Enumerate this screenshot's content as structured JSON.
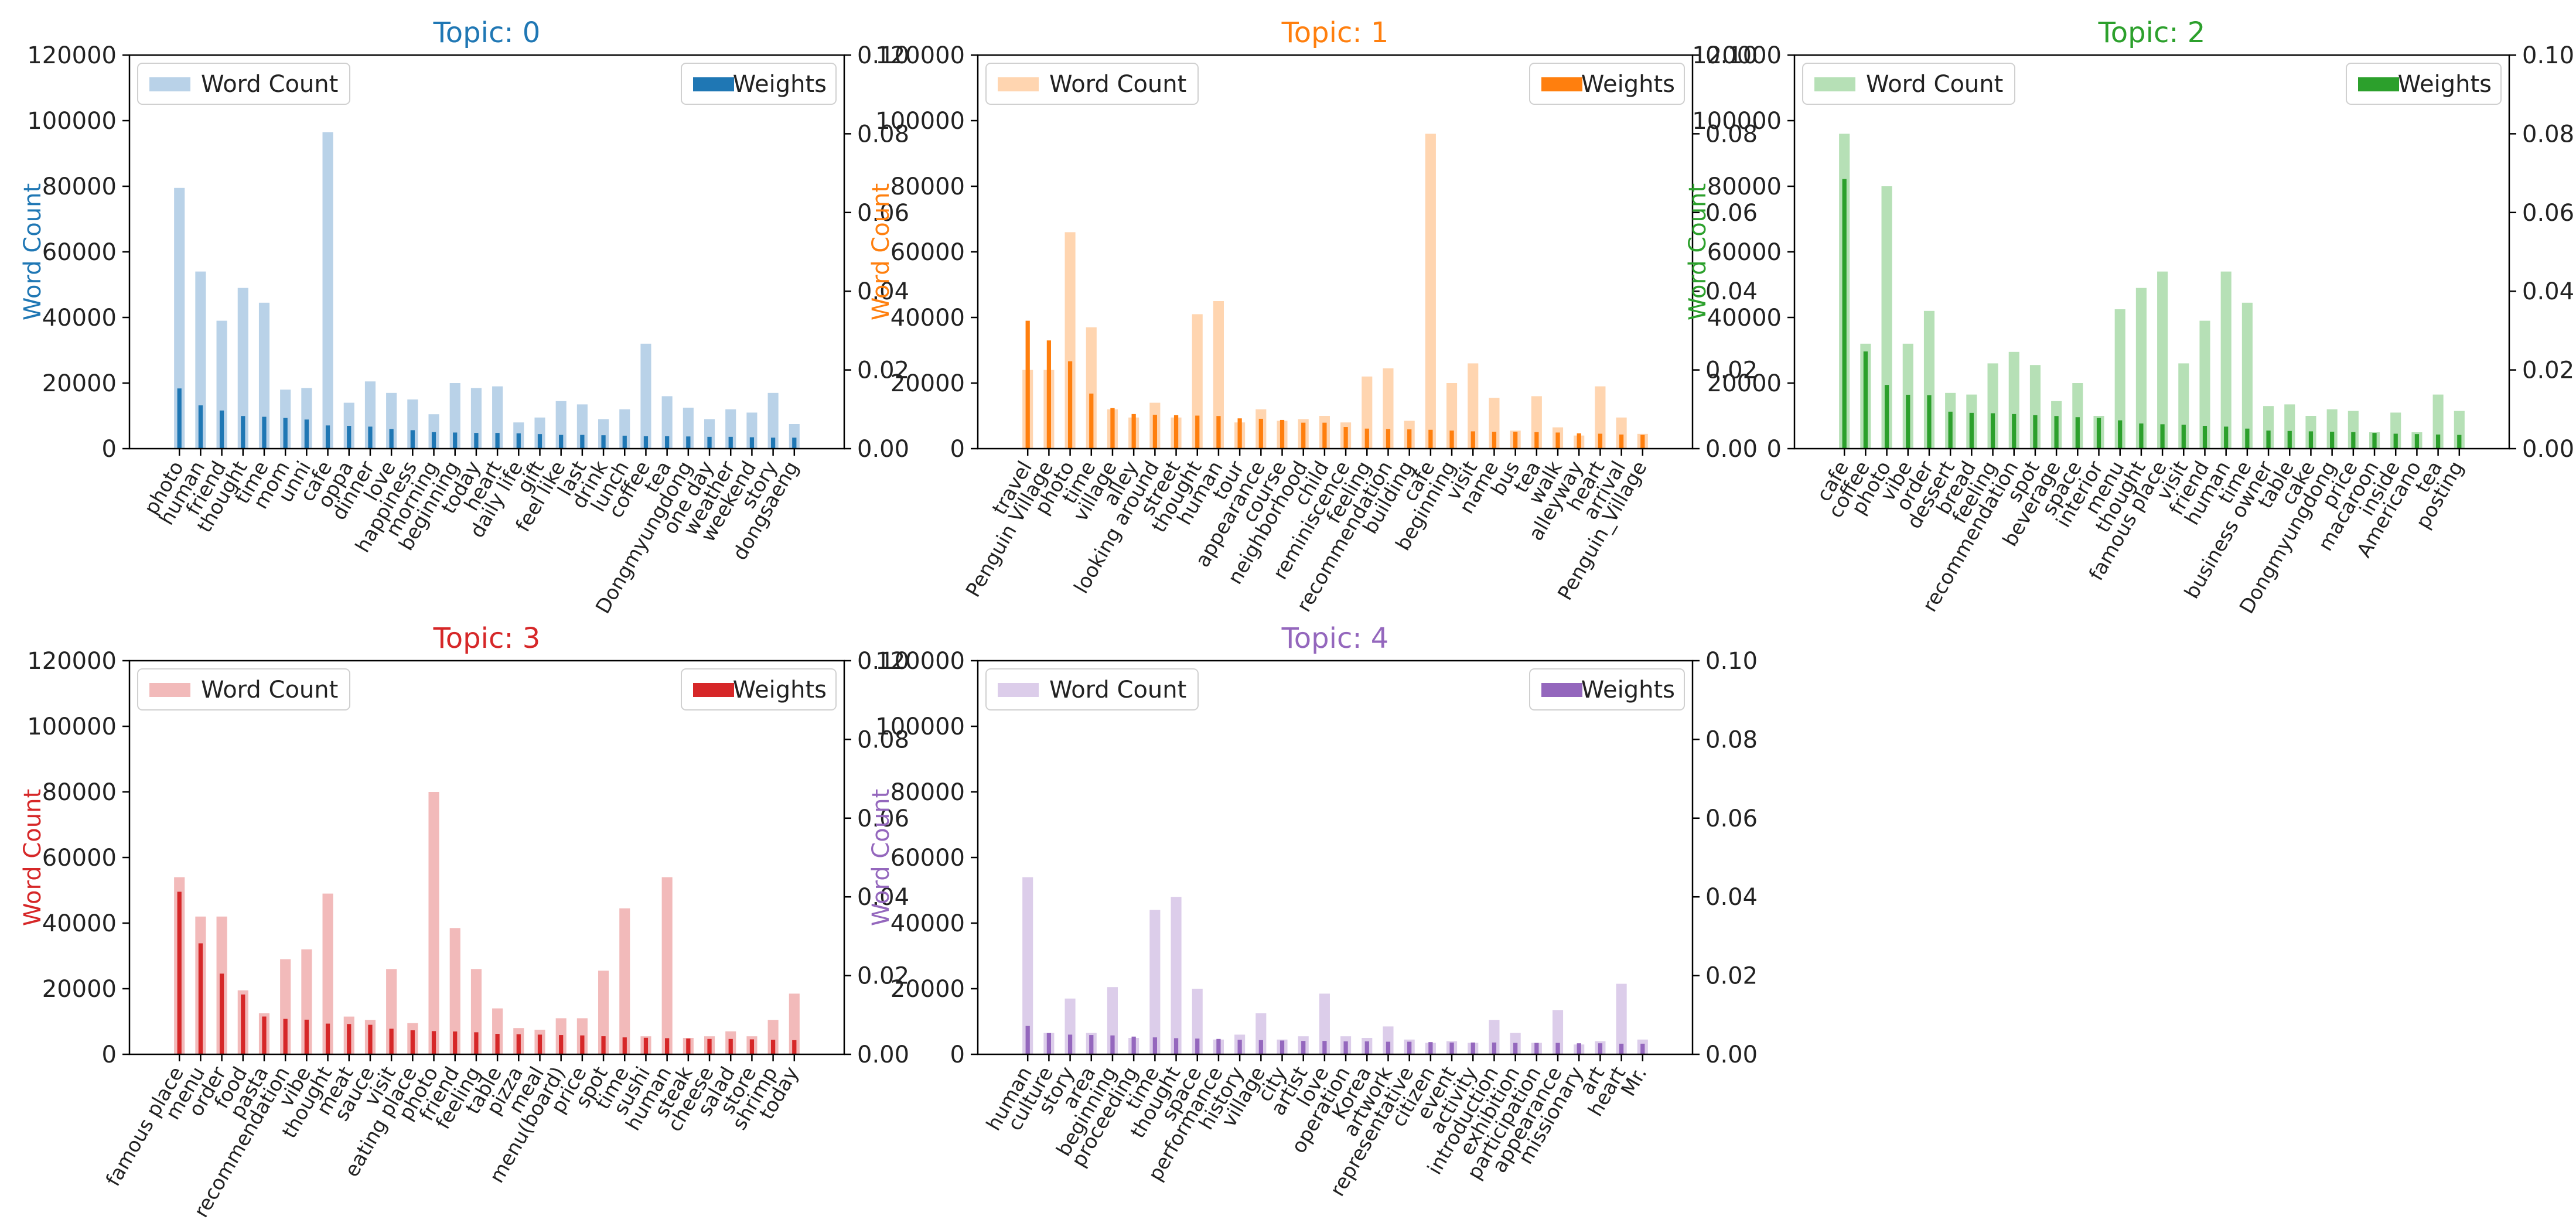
{
  "figure": {
    "word_count_label": "Word Count",
    "weights_label": "Weights"
  },
  "chart_data": [
    {
      "type": "bar",
      "title": "Topic: 0",
      "color": "#1f77b4",
      "light_color": "#b9d2e8",
      "ylabel": "Word Count",
      "ylim": [
        0,
        120000
      ],
      "y2lim": [
        0,
        0.1
      ],
      "yticks": [
        "0",
        "20000",
        "40000",
        "60000",
        "80000",
        "100000",
        "120000"
      ],
      "y2ticks": [
        "0.00",
        "0.02",
        "0.04",
        "0.06",
        "0.08",
        "0.10"
      ],
      "categories": [
        "photo",
        "human",
        "friend",
        "thought",
        "time",
        "mom",
        "unni",
        "cafe",
        "oppa",
        "dinner",
        "love",
        "happiness",
        "morning",
        "beginning",
        "today",
        "heart",
        "daily life",
        "gift",
        "feel like",
        "last",
        "drink",
        "lunch",
        "coffee",
        "tea",
        "Dongmyungdong",
        "one day",
        "weather",
        "weekend",
        "story",
        "dongsaeng"
      ],
      "series": [
        {
          "name": "Word Count",
          "axis": "left",
          "values": [
            79500,
            54000,
            39000,
            49000,
            44500,
            18000,
            18500,
            96500,
            14000,
            20500,
            17000,
            15000,
            10500,
            20000,
            18500,
            19000,
            8000,
            9500,
            14500,
            13500,
            9000,
            12000,
            32000,
            16000,
            12500,
            9000,
            12000,
            11000,
            17000,
            7500
          ]
        },
        {
          "name": "Weights",
          "axis": "right",
          "values": [
            0.0153,
            0.011,
            0.0097,
            0.0083,
            0.0081,
            0.0078,
            0.0074,
            0.0059,
            0.0058,
            0.0056,
            0.005,
            0.0047,
            0.0042,
            0.0041,
            0.004,
            0.004,
            0.0039,
            0.0037,
            0.0035,
            0.0035,
            0.0034,
            0.0033,
            0.0032,
            0.0032,
            0.0031,
            0.003,
            0.003,
            0.0029,
            0.0028,
            0.0028
          ]
        }
      ]
    },
    {
      "type": "bar",
      "title": "Topic: 1",
      "color": "#ff7f0e",
      "light_color": "#ffd5b0",
      "ylabel": "Word Count",
      "ylim": [
        0,
        120000
      ],
      "y2lim": [
        0,
        0.1
      ],
      "yticks": [
        "0",
        "20000",
        "40000",
        "60000",
        "80000",
        "100000",
        "120000"
      ],
      "y2ticks": [
        "0.00",
        "0.02",
        "0.04",
        "0.06",
        "0.08",
        "0.10"
      ],
      "categories": [
        "travel",
        "Penguin Village",
        "photo",
        "time",
        "village",
        "alley",
        "looking around",
        "street",
        "thought",
        "human",
        "tour",
        "appearance",
        "course",
        "neighborhood",
        "child",
        "reminiscence",
        "feeling",
        "recommendation",
        "building",
        "cafe",
        "beginning",
        "visit",
        "name",
        "bus",
        "tea",
        "walk",
        "alleyway",
        "heart",
        "arrival",
        "Penguin_Village"
      ],
      "series": [
        {
          "name": "Word Count",
          "axis": "left",
          "values": [
            24000,
            24000,
            66000,
            37000,
            12000,
            9500,
            14000,
            9500,
            41000,
            45000,
            8000,
            12000,
            8500,
            9000,
            10000,
            8000,
            22000,
            24500,
            8500,
            96000,
            20000,
            26000,
            15500,
            5500,
            16000,
            6500,
            4000,
            19000,
            9500,
            4500
          ]
        },
        {
          "name": "Weights",
          "axis": "right",
          "values": [
            0.0325,
            0.0275,
            0.0222,
            0.014,
            0.0103,
            0.0088,
            0.0086,
            0.0085,
            0.0084,
            0.0083,
            0.0077,
            0.0076,
            0.0073,
            0.0066,
            0.0066,
            0.0055,
            0.0051,
            0.005,
            0.0049,
            0.0048,
            0.0046,
            0.0044,
            0.0043,
            0.0043,
            0.0042,
            0.0041,
            0.0039,
            0.0038,
            0.0036,
            0.0035
          ]
        }
      ]
    },
    {
      "type": "bar",
      "title": "Topic: 2",
      "color": "#2ca02c",
      "light_color": "#b6e0b6",
      "ylabel": "Word Count",
      "ylim": [
        0,
        120000
      ],
      "y2lim": [
        0,
        0.1
      ],
      "yticks": [
        "0",
        "20000",
        "40000",
        "60000",
        "80000",
        "100000",
        "120000"
      ],
      "y2ticks": [
        "0.00",
        "0.02",
        "0.04",
        "0.06",
        "0.08",
        "0.10"
      ],
      "categories": [
        "cafe",
        "coffee",
        "photo",
        "vibe",
        "order",
        "dessert",
        "bread",
        "feeling",
        "recommendation",
        "spot",
        "beverage",
        "space",
        "interior",
        "menu",
        "thought",
        "famous place",
        "visit",
        "friend",
        "human",
        "time",
        "business owner",
        "table",
        "cake",
        "Dongmyungdong",
        "price",
        "macaroon",
        "inside",
        "Americano",
        "tea",
        "posting"
      ],
      "series": [
        {
          "name": "Word Count",
          "axis": "left",
          "values": [
            96000,
            32000,
            80000,
            32000,
            42000,
            17000,
            16500,
            26000,
            29500,
            25500,
            14500,
            20000,
            10000,
            42500,
            49000,
            54000,
            26000,
            39000,
            54000,
            44500,
            13000,
            13500,
            10000,
            12000,
            11500,
            5000,
            11000,
            5000,
            16500,
            11500
          ]
        },
        {
          "name": "Weights",
          "axis": "right",
          "values": [
            0.0685,
            0.0247,
            0.0162,
            0.0137,
            0.0136,
            0.0094,
            0.0091,
            0.009,
            0.0088,
            0.0085,
            0.0083,
            0.008,
            0.0078,
            0.0072,
            0.0064,
            0.0062,
            0.0061,
            0.0058,
            0.0056,
            0.0051,
            0.0046,
            0.0045,
            0.0044,
            0.0043,
            0.0042,
            0.004,
            0.0038,
            0.0037,
            0.0036,
            0.0035
          ]
        }
      ]
    },
    {
      "type": "bar",
      "title": "Topic: 3",
      "color": "#d62728",
      "light_color": "#f2baba",
      "ylabel": "Word Count",
      "ylim": [
        0,
        120000
      ],
      "y2lim": [
        0,
        0.1
      ],
      "yticks": [
        "0",
        "20000",
        "40000",
        "60000",
        "80000",
        "100000",
        "120000"
      ],
      "y2ticks": [
        "0.00",
        "0.02",
        "0.04",
        "0.06",
        "0.08",
        "0.10"
      ],
      "categories": [
        "famous place",
        "menu",
        "order",
        "food",
        "pasta",
        "recommendation",
        "vibe",
        "thought",
        "meat",
        "sauce",
        "visit",
        "eating place",
        "photo",
        "friend",
        "feeling",
        "table",
        "pizza",
        "meal",
        "menu(board)",
        "price",
        "spot",
        "time",
        "sushi",
        "human",
        "steak",
        "cheese",
        "salad",
        "store",
        "shrimp",
        "today"
      ],
      "series": [
        {
          "name": "Word Count",
          "axis": "left",
          "values": [
            54000,
            42000,
            42000,
            19500,
            12500,
            29000,
            32000,
            49000,
            11500,
            10500,
            26000,
            9500,
            80000,
            38500,
            26000,
            14000,
            8000,
            7500,
            11000,
            11000,
            25500,
            44500,
            5500,
            54000,
            5000,
            5500,
            7000,
            5500,
            10500,
            18500
          ]
        },
        {
          "name": "Weights",
          "axis": "right",
          "values": [
            0.0413,
            0.0282,
            0.0205,
            0.0152,
            0.0096,
            0.009,
            0.0088,
            0.0078,
            0.0077,
            0.0075,
            0.0065,
            0.0061,
            0.0059,
            0.0058,
            0.0056,
            0.0052,
            0.0051,
            0.005,
            0.0049,
            0.0048,
            0.0046,
            0.0043,
            0.0042,
            0.0041,
            0.004,
            0.0039,
            0.0039,
            0.0038,
            0.0037,
            0.0036
          ]
        }
      ]
    },
    {
      "type": "bar",
      "title": "Topic: 4",
      "color": "#9467bd",
      "light_color": "#dccdea",
      "ylabel": "Word Count",
      "ylim": [
        0,
        120000
      ],
      "y2lim": [
        0,
        0.1
      ],
      "yticks": [
        "0",
        "20000",
        "40000",
        "60000",
        "80000",
        "100000",
        "120000"
      ],
      "y2ticks": [
        "0.00",
        "0.02",
        "0.04",
        "0.06",
        "0.08",
        "0.10"
      ],
      "categories": [
        "human",
        "culture",
        "story",
        "area",
        "beginning",
        "proceeding",
        "time",
        "thought",
        "space",
        "performance",
        "history",
        "village",
        "city",
        "artist",
        "love",
        "operation",
        "Korea",
        "artwork",
        "representative",
        "citizen",
        "event",
        "activity",
        "introduction",
        "exhibition",
        "participation",
        "appearance",
        "missionary",
        "art",
        "heart",
        "Mr."
      ],
      "series": [
        {
          "name": "Word Count",
          "axis": "left",
          "values": [
            54000,
            6500,
            17000,
            6500,
            20500,
            5000,
            44000,
            48000,
            20000,
            4500,
            6000,
            12500,
            4500,
            5500,
            18500,
            5500,
            5000,
            8500,
            4500,
            3500,
            4000,
            3500,
            10500,
            6500,
            3500,
            13500,
            3000,
            4000,
            21500,
            4500
          ]
        },
        {
          "name": "Weights",
          "axis": "right",
          "values": [
            0.0072,
            0.0054,
            0.005,
            0.0049,
            0.0048,
            0.0045,
            0.0043,
            0.0041,
            0.004,
            0.0039,
            0.0037,
            0.0036,
            0.0035,
            0.0034,
            0.0034,
            0.0033,
            0.0033,
            0.0032,
            0.0032,
            0.0031,
            0.003,
            0.003,
            0.003,
            0.0029,
            0.0029,
            0.0029,
            0.0028,
            0.0028,
            0.0027,
            0.0027
          ]
        }
      ]
    }
  ]
}
